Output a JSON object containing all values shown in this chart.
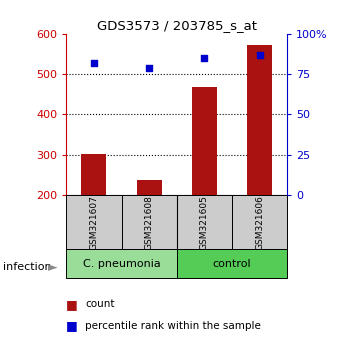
{
  "title": "GDS3573 / 203785_s_at",
  "samples": [
    "GSM321607",
    "GSM321608",
    "GSM321605",
    "GSM321606"
  ],
  "counts": [
    302,
    237,
    468,
    572
  ],
  "percentiles": [
    82,
    79,
    85,
    87
  ],
  "ylim_left": [
    200,
    600
  ],
  "ylim_right": [
    0,
    100
  ],
  "yticks_left": [
    200,
    300,
    400,
    500,
    600
  ],
  "yticks_right": [
    0,
    25,
    50,
    75,
    100
  ],
  "groups": [
    {
      "label": "C. pneumonia",
      "color": "#99dd99",
      "samples_idx": [
        0,
        1
      ]
    },
    {
      "label": "control",
      "color": "#55cc55",
      "samples_idx": [
        2,
        3
      ]
    }
  ],
  "bar_color": "#aa1111",
  "dot_color": "#0000cc",
  "bar_width": 0.45,
  "grid_color": "#000000",
  "background_color": "#ffffff",
  "sample_box_color": "#cccccc",
  "left_axis_color": "#cc0000",
  "right_axis_color": "#0000cc"
}
